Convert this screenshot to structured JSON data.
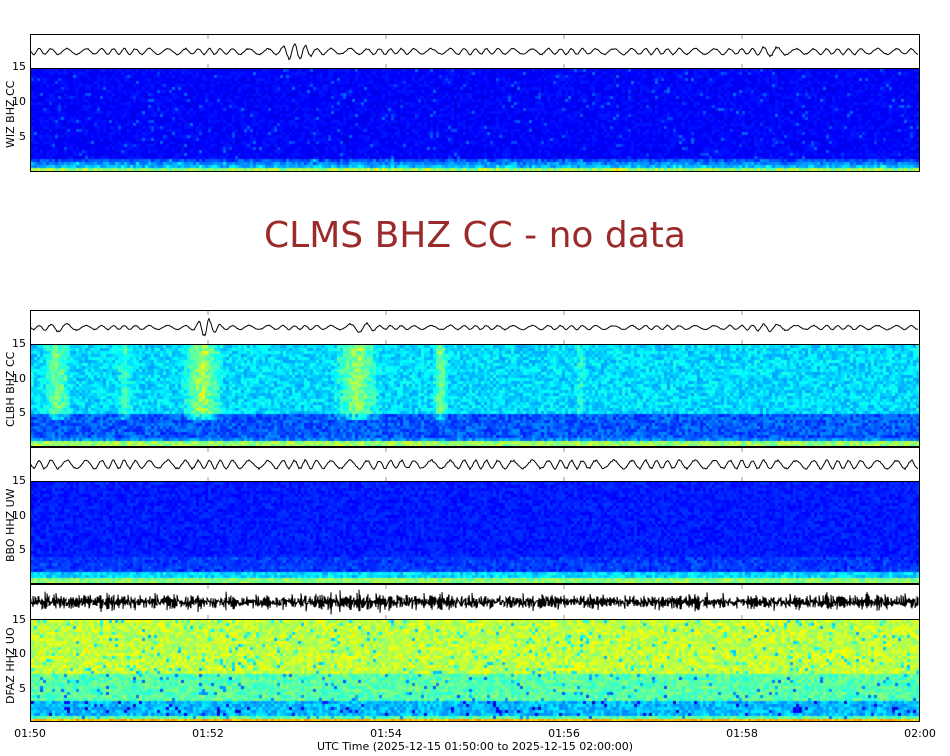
{
  "chart_data": {
    "type": "heatmap",
    "title": "",
    "xlabel": "UTC Time (2025-12-15 01:50:00 to 2025-12-15 02:00:00)",
    "x_ticks": [
      "01:50",
      "01:52",
      "01:54",
      "01:56",
      "01:58",
      "02:00"
    ],
    "x_range": [
      "2025-12-15 01:50:00",
      "2025-12-15 02:00:00"
    ],
    "y_ticks": [
      5,
      10,
      15
    ],
    "ylim": [
      0,
      15
    ],
    "colormap": "jet",
    "panels": [
      {
        "station": "WIZ BHZ CC",
        "status": "data",
        "waveform": "low-amplitude oscillation, burst near 01:53",
        "spectrogram_level": "low (dark blue), energy concentrated below 1 Hz"
      },
      {
        "station": "CLMS BHZ CC",
        "status": "no data"
      },
      {
        "station": "CLBH BHZ CC",
        "status": "data",
        "waveform": "bursts near 01:50:15, 01:52, 01:53:40",
        "spectrogram_level": "moderate, vertical bands of energy 5-15 Hz near 01:50:15, 01:51:20, 01:52, 01:53:30, 01:54:40"
      },
      {
        "station": "BBO HHZ UW",
        "status": "data",
        "waveform": "steady oscillation",
        "spectrogram_level": "low (dark blue), bright band near 0-1 Hz"
      },
      {
        "station": "DFAZ HHZ UO",
        "status": "data",
        "waveform": "high-amplitude continuous noise",
        "spectrogram_level": "high (cyan/green/yellow) across 0-15 Hz"
      }
    ]
  },
  "axis": {
    "x_ticks": [
      "01:50",
      "01:52",
      "01:54",
      "01:56",
      "01:58",
      "02:00"
    ],
    "xlabel": "UTC Time (2025-12-15 01:50:00 to 2025-12-15 02:00:00)",
    "y_ticks": [
      "15",
      "10",
      "5"
    ]
  },
  "panels": {
    "wiz": {
      "label": "WIZ BHZ CC"
    },
    "clms": {
      "label": "CLMS BHZ CC - no data"
    },
    "clbh": {
      "label": "CLBH BHZ CC"
    },
    "bbo": {
      "label": "BBO HHZ UW"
    },
    "dfaz": {
      "label": "DFAZ HHZ UO"
    }
  },
  "colors": {
    "no_data_text": "#9b2a2a",
    "spec_low": "#00008f",
    "spec_mid": "#0040ff",
    "spec_cyan": "#00d0ff",
    "spec_green": "#80ff80",
    "spec_yellow": "#ffe000"
  }
}
